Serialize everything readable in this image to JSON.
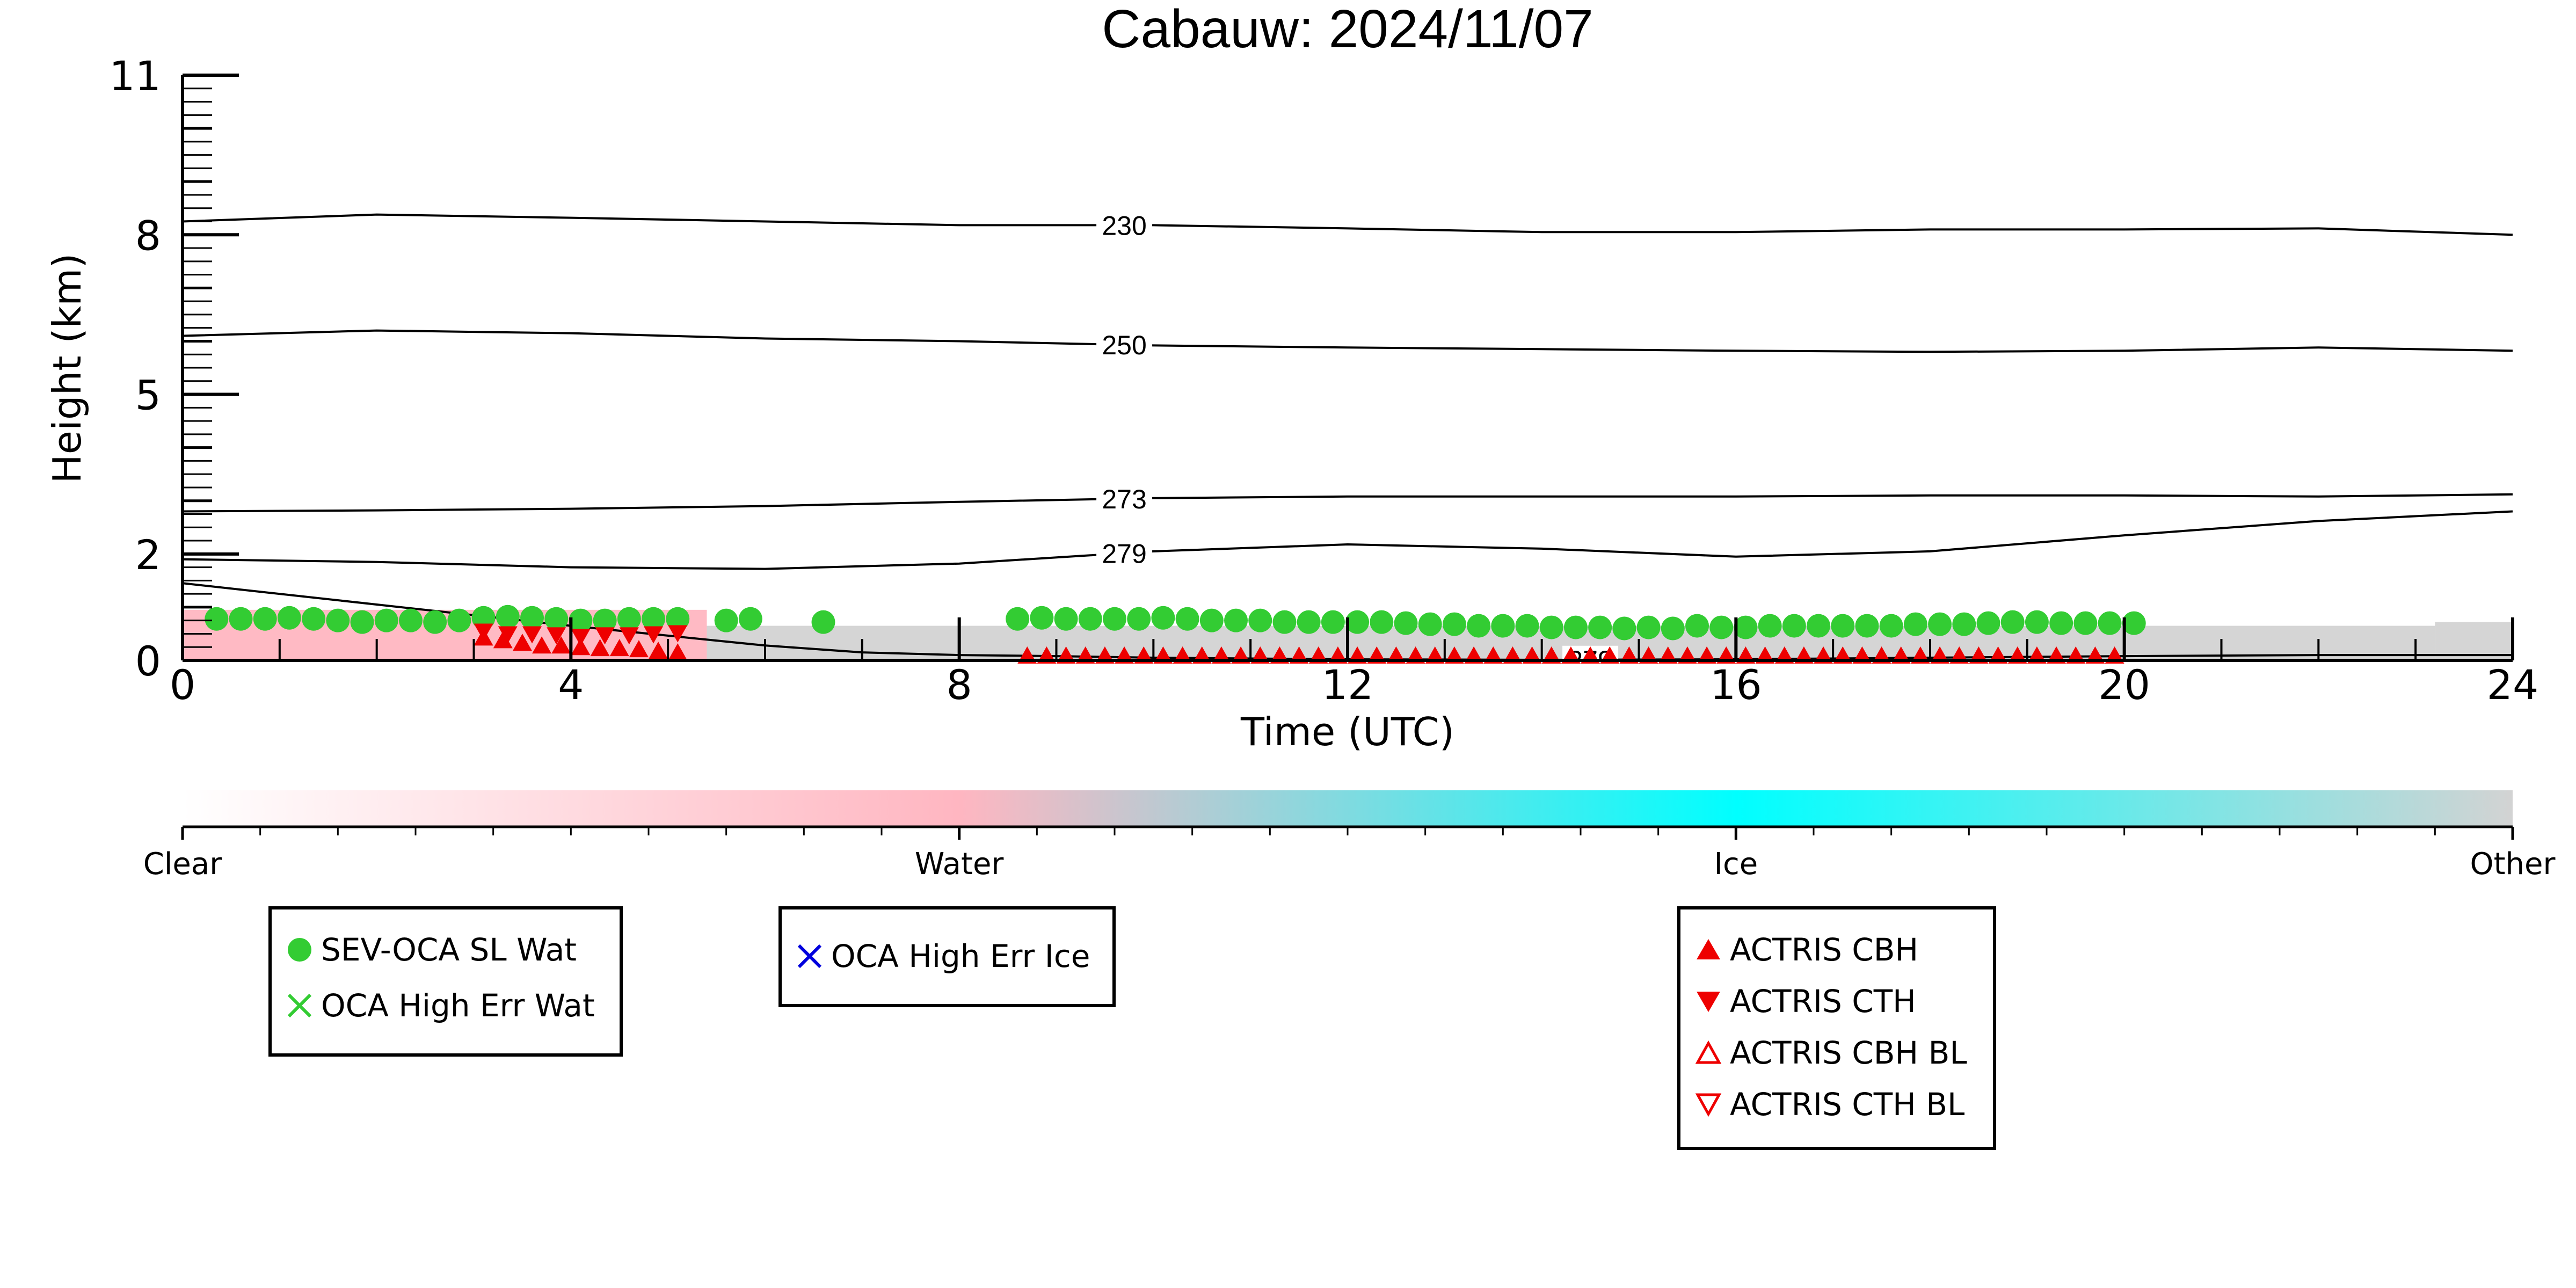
{
  "chart_data": {
    "type": "scatter",
    "title": "Cabauw: 2024/11/07",
    "xlabel": "Time (UTC)",
    "ylabel": "Height (km)",
    "xlim": [
      0,
      24
    ],
    "ylim": [
      0,
      11
    ],
    "xticks": [
      0,
      4,
      8,
      12,
      16,
      20,
      24
    ],
    "yticks": [
      0,
      2,
      5,
      8,
      11
    ],
    "ytick_labels": [
      "0",
      "2",
      "5",
      "8",
      "11"
    ],
    "grid": false,
    "contours": [
      {
        "label": "230",
        "label_x": 9.7,
        "x": [
          0,
          2,
          4,
          6,
          8,
          10,
          12,
          14,
          16,
          18,
          20,
          22,
          24
        ],
        "y": [
          8.25,
          8.38,
          8.32,
          8.25,
          8.18,
          8.18,
          8.12,
          8.05,
          8.05,
          8.1,
          8.1,
          8.12,
          8.0
        ]
      },
      {
        "label": "250",
        "label_x": 9.7,
        "x": [
          0,
          2,
          4,
          6,
          8,
          10,
          12,
          14,
          16,
          18,
          20,
          22,
          24
        ],
        "y": [
          6.1,
          6.2,
          6.15,
          6.05,
          6.0,
          5.92,
          5.88,
          5.85,
          5.82,
          5.8,
          5.82,
          5.88,
          5.82
        ]
      },
      {
        "label": "273",
        "label_x": 9.7,
        "x": [
          0,
          2,
          4,
          6,
          8,
          10,
          12,
          14,
          16,
          18,
          20,
          22,
          24
        ],
        "y": [
          2.8,
          2.82,
          2.85,
          2.9,
          2.98,
          3.05,
          3.08,
          3.08,
          3.08,
          3.1,
          3.1,
          3.08,
          3.12
        ]
      },
      {
        "label": "279",
        "label_x": 9.7,
        "x": [
          0,
          2,
          4,
          6,
          8,
          10,
          12,
          14,
          16,
          18,
          20,
          22,
          24
        ],
        "y": [
          1.9,
          1.85,
          1.75,
          1.72,
          1.82,
          2.05,
          2.18,
          2.1,
          1.95,
          2.05,
          2.35,
          2.62,
          2.8
        ]
      },
      {
        "label": "279",
        "label_x": 14.5,
        "x": [
          0,
          2,
          4,
          6,
          7,
          8,
          9,
          10,
          12,
          14,
          16,
          18,
          20,
          22,
          24
        ],
        "y": [
          1.45,
          1.05,
          0.65,
          0.28,
          0.15,
          0.1,
          0.08,
          0.05,
          0.02,
          0.01,
          0.02,
          0.05,
          0.08,
          0.1,
          0.1
        ]
      }
    ],
    "classification_strip": [
      {
        "from": 0,
        "to": 5.4,
        "class": "Water",
        "top_km": 0.95
      },
      {
        "from": 5.4,
        "to": 23.2,
        "class": "Other",
        "top_km": 0.65
      },
      {
        "from": 23.2,
        "to": 24,
        "class": "Other",
        "top_km": 0.72
      }
    ],
    "series": [
      {
        "name": "SEV-OCA SL Wat",
        "marker": "circle",
        "color": "#33cc33",
        "x": [
          0.35,
          0.6,
          0.85,
          1.1,
          1.35,
          1.6,
          1.85,
          2.1,
          2.35,
          2.6,
          2.85,
          3.1,
          3.35,
          3.6,
          3.85,
          4.1,
          4.35,
          4.6,
          4.85,
          5.1,
          5.6,
          5.85,
          6.6,
          8.6,
          8.85,
          9.1,
          9.35,
          9.6,
          9.85,
          10.1,
          10.35,
          10.6,
          10.85,
          11.1,
          11.35,
          11.6,
          11.85,
          12.1,
          12.35,
          12.6,
          12.85,
          13.1,
          13.35,
          13.6,
          13.85,
          14.1,
          14.35,
          14.6,
          14.85,
          15.1,
          15.35,
          15.6,
          15.85,
          16.1,
          16.35,
          16.6,
          16.85,
          17.1,
          17.35,
          17.6,
          17.85,
          18.1,
          18.35,
          18.6,
          18.85,
          19.1,
          19.35,
          19.6,
          19.85,
          20.1
        ],
        "y": [
          0.78,
          0.78,
          0.78,
          0.8,
          0.78,
          0.75,
          0.72,
          0.75,
          0.75,
          0.72,
          0.75,
          0.8,
          0.82,
          0.8,
          0.78,
          0.75,
          0.75,
          0.78,
          0.78,
          0.78,
          0.75,
          0.78,
          0.72,
          0.78,
          0.8,
          0.78,
          0.78,
          0.78,
          0.78,
          0.8,
          0.78,
          0.75,
          0.75,
          0.75,
          0.72,
          0.72,
          0.72,
          0.72,
          0.72,
          0.7,
          0.68,
          0.68,
          0.65,
          0.65,
          0.65,
          0.62,
          0.62,
          0.62,
          0.6,
          0.62,
          0.6,
          0.65,
          0.62,
          0.62,
          0.65,
          0.65,
          0.65,
          0.65,
          0.65,
          0.65,
          0.68,
          0.68,
          0.68,
          0.7,
          0.72,
          0.72,
          0.7,
          0.7,
          0.7,
          0.7
        ]
      },
      {
        "name": "OCA High Err Wat",
        "marker": "x",
        "color": "#33cc33",
        "x": [],
        "y": []
      },
      {
        "name": "OCA High Err Ice",
        "marker": "x",
        "color": "#0000dd",
        "x": [],
        "y": []
      },
      {
        "name": "ACTRIS CBH",
        "marker": "triangle-up",
        "color": "#ee0000",
        "x": [
          3.1,
          3.3,
          3.5,
          3.7,
          3.9,
          4.1,
          4.3,
          4.5,
          4.7,
          4.9,
          5.1,
          8.7,
          8.9,
          9.1,
          9.3,
          9.5,
          9.7,
          9.9,
          10.1,
          10.3,
          10.5,
          10.7,
          10.9,
          11.1,
          11.3,
          11.5,
          11.7,
          11.9,
          12.1,
          12.3,
          12.5,
          12.7,
          12.9,
          13.1,
          13.3,
          13.5,
          13.7,
          13.9,
          14.1,
          14.3,
          14.5,
          14.7,
          14.9,
          15.1,
          15.3,
          15.5,
          15.7,
          15.9,
          16.1,
          16.3,
          16.5,
          16.7,
          16.9,
          17.1,
          17.3,
          17.5,
          17.7,
          17.9,
          18.1,
          18.3,
          18.5,
          18.7,
          18.9,
          19.1,
          19.3,
          19.5,
          19.7,
          19.9
        ],
        "y": [
          0.4,
          0.35,
          0.3,
          0.25,
          0.25,
          0.22,
          0.2,
          0.2,
          0.18,
          0.15,
          0.12,
          0.06,
          0.06,
          0.06,
          0.06,
          0.06,
          0.06,
          0.06,
          0.06,
          0.06,
          0.06,
          0.06,
          0.06,
          0.06,
          0.06,
          0.06,
          0.06,
          0.06,
          0.06,
          0.06,
          0.06,
          0.06,
          0.06,
          0.06,
          0.06,
          0.06,
          0.06,
          0.06,
          0.06,
          0.06,
          0.06,
          0.06,
          0.06,
          0.06,
          0.06,
          0.06,
          0.06,
          0.06,
          0.06,
          0.06,
          0.06,
          0.06,
          0.06,
          0.06,
          0.06,
          0.06,
          0.06,
          0.06,
          0.06,
          0.06,
          0.06,
          0.06,
          0.06,
          0.06,
          0.06,
          0.06,
          0.06,
          0.06
        ]
      },
      {
        "name": "ACTRIS CTH",
        "marker": "triangle-down",
        "color": "#ee0000",
        "x": [
          3.1,
          3.35,
          3.6,
          3.85,
          4.1,
          4.35,
          4.6,
          4.85,
          5.1
        ],
        "y": [
          0.55,
          0.5,
          0.5,
          0.48,
          0.45,
          0.48,
          0.48,
          0.5,
          0.52
        ]
      },
      {
        "name": "ACTRIS CBH BL",
        "marker": "triangle-up-open",
        "color": "#ee0000",
        "x": [],
        "y": []
      },
      {
        "name": "ACTRIS CTH BL",
        "marker": "triangle-down-open",
        "color": "#ee0000",
        "x": [],
        "y": []
      }
    ],
    "colorbar": {
      "labels": [
        "Clear",
        "Water",
        "Ice",
        "Other"
      ],
      "colors": [
        "#ffffff",
        "#ffb6c1",
        "#00ffff",
        "#d3d3d3"
      ]
    },
    "legends": [
      {
        "items": [
          "SEV-OCA SL Wat",
          "OCA High Err Wat"
        ]
      },
      {
        "items": [
          "OCA High Err Ice"
        ]
      },
      {
        "items": [
          "ACTRIS CBH",
          "ACTRIS CTH",
          "ACTRIS CBH BL",
          "ACTRIS CTH BL"
        ]
      }
    ]
  }
}
